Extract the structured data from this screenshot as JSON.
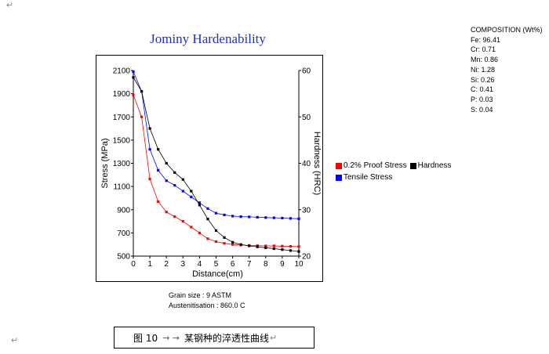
{
  "page": {
    "mark_top": "↵",
    "mark_bottom": "↵"
  },
  "caption": {
    "label": "图 10",
    "arrows": "→ →",
    "text": "某钢种的淬透性曲线",
    "mark": "↵"
  },
  "info": {
    "grain_size": "Grain size : 9 ASTM",
    "austenitisation": "Austenitisation : 860.0 C"
  },
  "composition": {
    "title": "COMPOSITION (Wt%)",
    "items": [
      "Fe: 96.41",
      "Cr: 0.71",
      "Mn: 0.86",
      "Ni: 1.28",
      "Si: 0.26",
      "C: 0.41",
      "P: 0.03",
      "S: 0.04"
    ]
  },
  "colors": {
    "proof": "#ff0000",
    "tensile": "#0000ff",
    "hardness": "#000000",
    "title": "#1f2fd1"
  },
  "chart_data": {
    "type": "line",
    "title": "Jominy Hardenability",
    "xlabel": "Distance(cm)",
    "ylabel_left": "Stress (MPa)",
    "ylabel_right": "Hardness (HRC)",
    "xlim": [
      0,
      10
    ],
    "ylim_left": [
      500,
      2100
    ],
    "ylim_right": [
      20,
      60
    ],
    "xticks": [
      0,
      1,
      2,
      3,
      4,
      5,
      6,
      7,
      8,
      9,
      10
    ],
    "yticks_left": [
      500,
      700,
      900,
      1100,
      1300,
      1500,
      1700,
      1900,
      2100
    ],
    "yticks_right": [
      20,
      30,
      40,
      50,
      60
    ],
    "legend_position": "right",
    "x": [
      0,
      0.5,
      1,
      1.5,
      2,
      2.5,
      3,
      3.5,
      4,
      4.5,
      5,
      5.5,
      6,
      6.5,
      7,
      7.5,
      8,
      8.5,
      9,
      9.5,
      10
    ],
    "series": [
      {
        "name": "0.2% Proof Stress",
        "axis": "left",
        "color": "#ff0000",
        "values": [
          1890,
          1700,
          1165,
          970,
          880,
          840,
          800,
          750,
          700,
          650,
          625,
          610,
          600,
          595,
          592,
          590,
          588,
          588,
          586,
          584,
          582
        ]
      },
      {
        "name": "Tensile Stress",
        "axis": "left",
        "color": "#0000ff",
        "values": [
          2090,
          1920,
          1420,
          1240,
          1150,
          1110,
          1060,
          1010,
          960,
          910,
          870,
          855,
          845,
          840,
          838,
          835,
          832,
          830,
          828,
          825,
          822
        ]
      },
      {
        "name": "Hardness",
        "axis": "right",
        "color": "#000000",
        "values": [
          58.5,
          55.5,
          47.5,
          43,
          40,
          38,
          36.5,
          34,
          31,
          28,
          25.5,
          24,
          23,
          22.5,
          22.2,
          22,
          21.8,
          21.6,
          21.4,
          21.2,
          21.0
        ]
      }
    ]
  }
}
